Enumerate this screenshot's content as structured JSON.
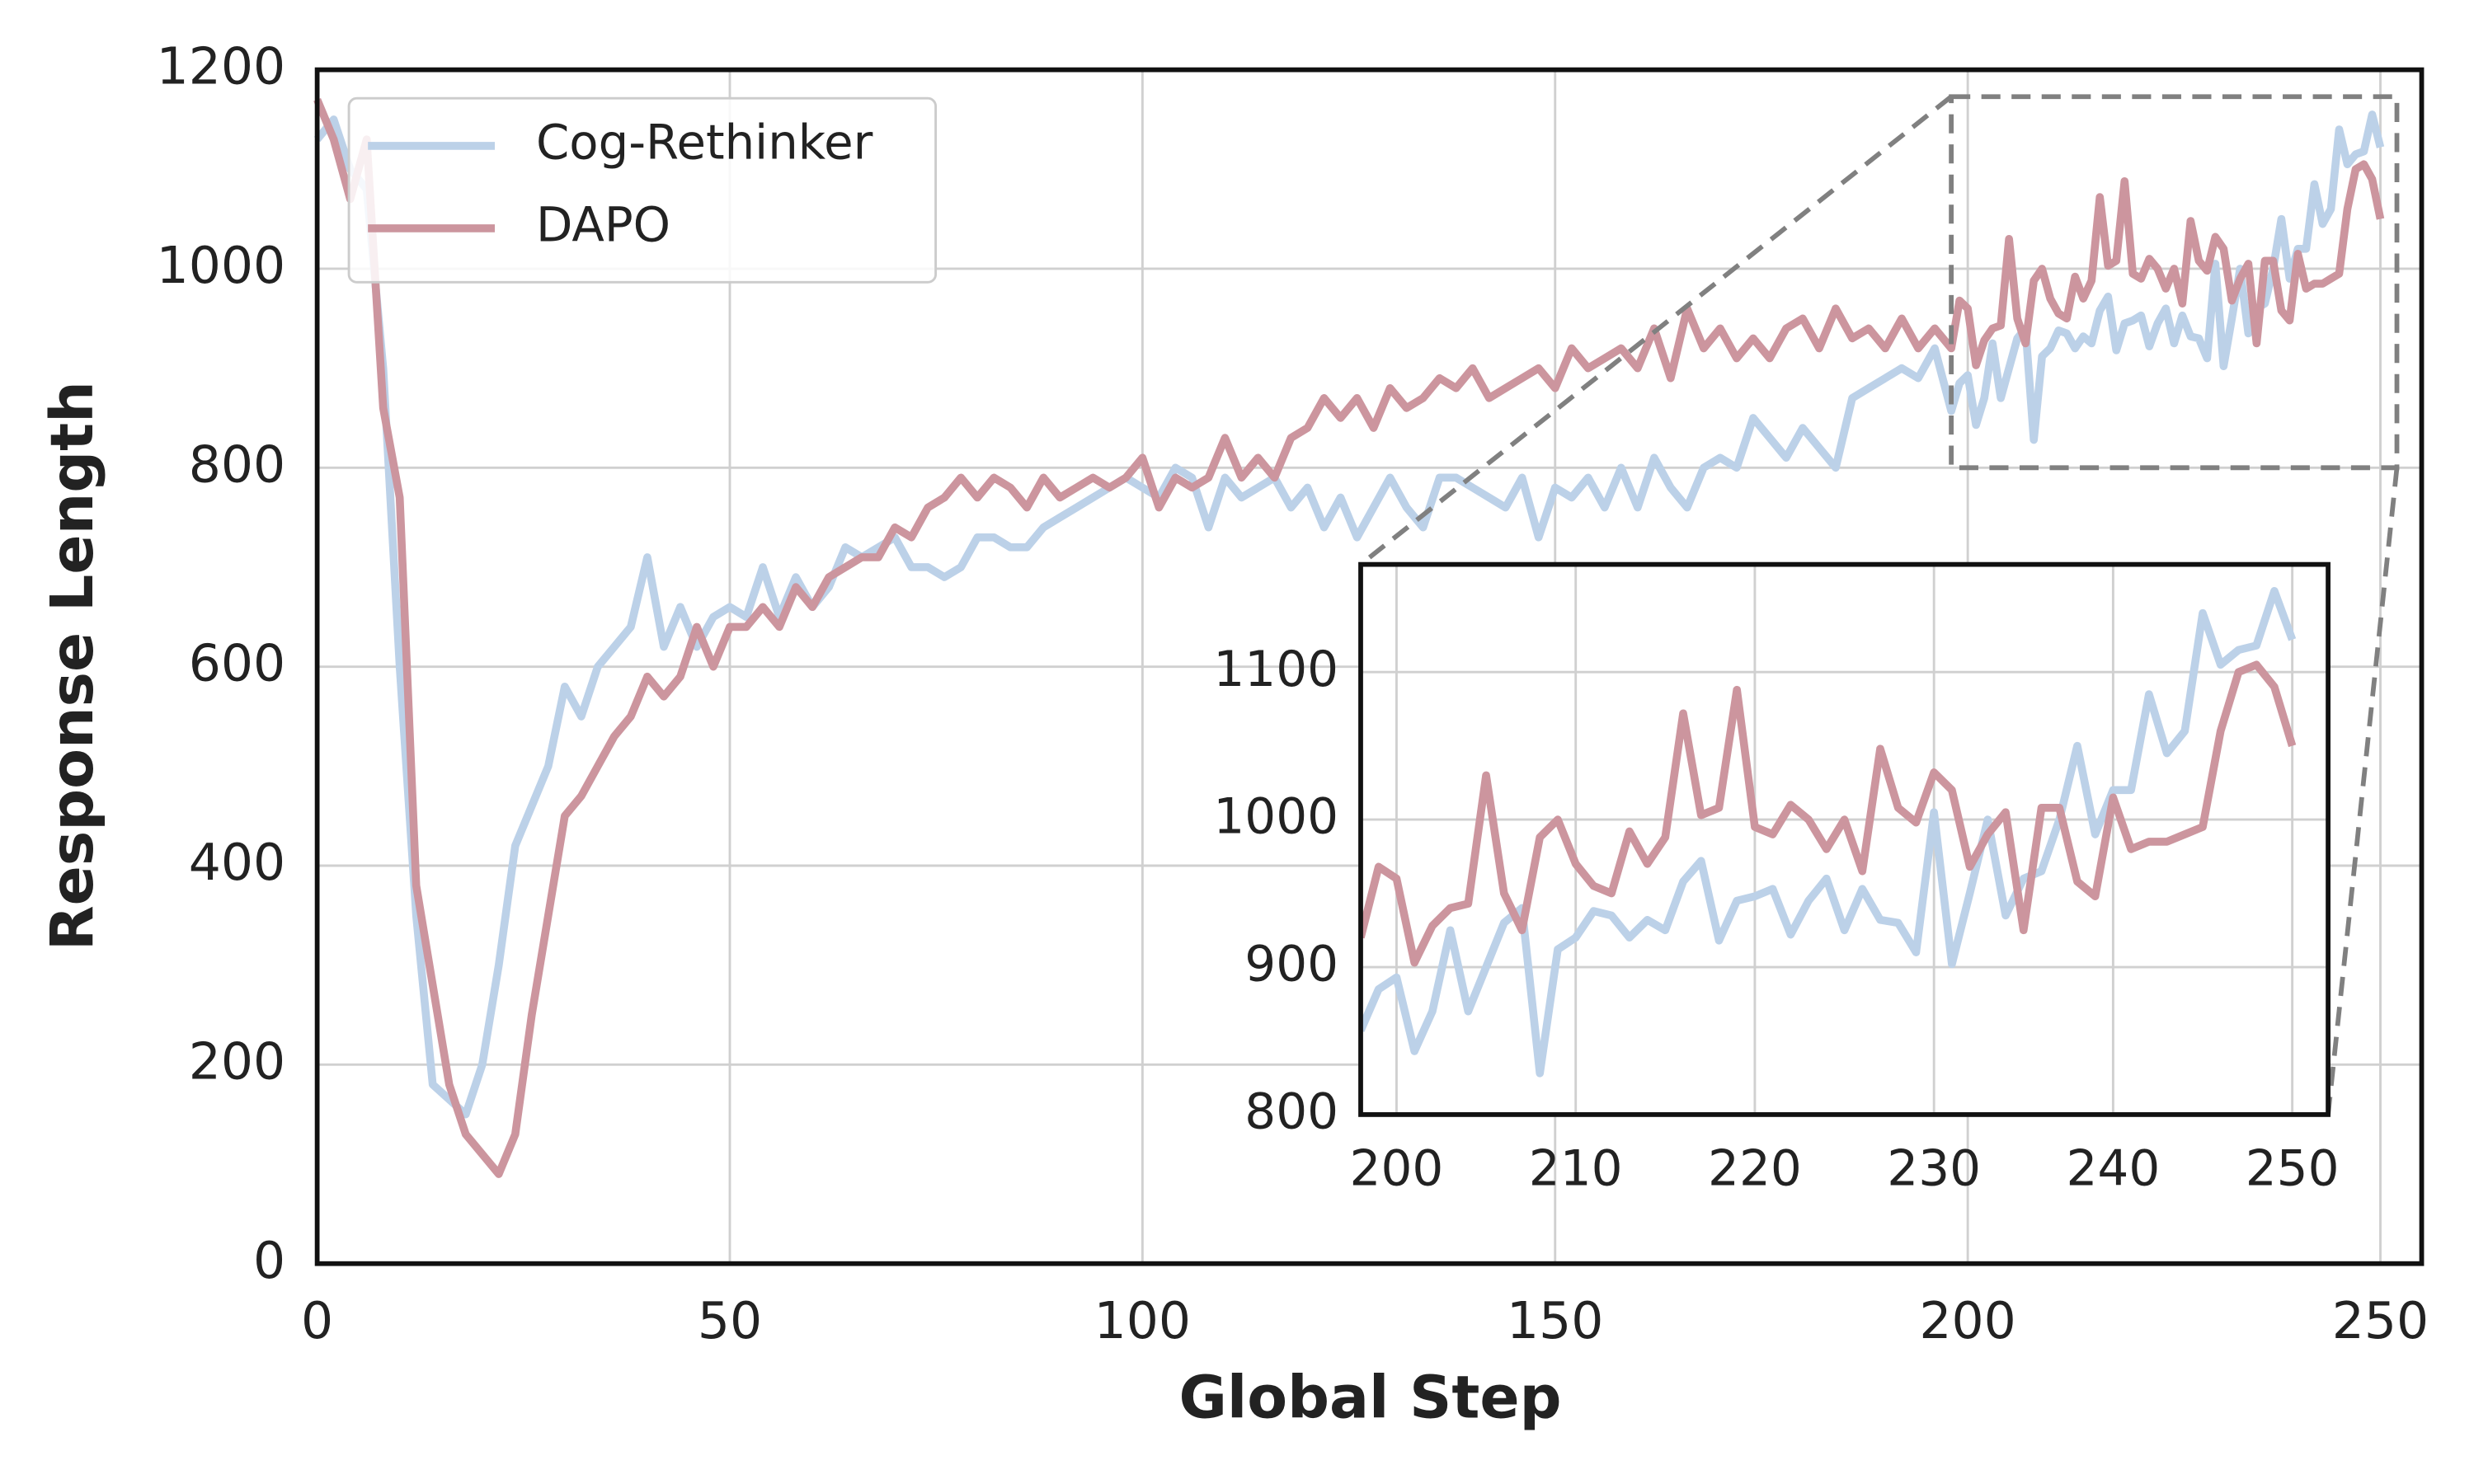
{
  "chart_data": {
    "type": "line",
    "xlabel": "Global Step",
    "ylabel": "Response Length",
    "x": [
      0,
      2,
      4,
      6,
      8,
      10,
      12,
      14,
      16,
      18,
      20,
      22,
      24,
      26,
      28,
      30,
      32,
      34,
      36,
      38,
      40,
      42,
      44,
      46,
      48,
      50,
      52,
      54,
      56,
      58,
      60,
      62,
      64,
      66,
      68,
      70,
      72,
      74,
      76,
      78,
      80,
      82,
      84,
      86,
      88,
      90,
      92,
      94,
      96,
      98,
      100,
      102,
      104,
      106,
      108,
      110,
      112,
      114,
      116,
      118,
      120,
      122,
      124,
      126,
      128,
      130,
      132,
      134,
      136,
      138,
      140,
      142,
      144,
      146,
      148,
      150,
      152,
      154,
      156,
      158,
      160,
      162,
      164,
      166,
      168,
      170,
      172,
      174,
      176,
      178,
      180,
      182,
      184,
      186,
      188,
      190,
      192,
      194,
      196,
      198,
      199,
      200,
      201,
      202,
      203,
      204,
      205,
      206,
      207,
      208,
      209,
      210,
      211,
      212,
      213,
      214,
      215,
      216,
      217,
      218,
      219,
      220,
      221,
      222,
      223,
      224,
      225,
      226,
      227,
      228,
      229,
      230,
      231,
      232,
      233,
      234,
      235,
      236,
      237,
      238,
      239,
      240,
      241,
      242,
      243,
      244,
      245,
      246,
      247,
      248,
      249,
      250
    ],
    "series": [
      {
        "name": "Cog-Rethinker",
        "color": "#bcd1e8",
        "values": [
          1130,
          1150,
          1100,
          1080,
          900,
          600,
          350,
          180,
          165,
          150,
          200,
          300,
          420,
          460,
          500,
          580,
          550,
          600,
          620,
          640,
          710,
          620,
          660,
          620,
          650,
          660,
          650,
          700,
          650,
          690,
          660,
          680,
          720,
          710,
          720,
          730,
          700,
          700,
          690,
          700,
          730,
          730,
          720,
          720,
          740,
          750,
          760,
          770,
          780,
          790,
          780,
          770,
          800,
          790,
          740,
          790,
          770,
          780,
          790,
          760,
          780,
          740,
          770,
          730,
          760,
          790,
          760,
          740,
          790,
          790,
          780,
          770,
          760,
          790,
          730,
          780,
          770,
          790,
          760,
          800,
          760,
          810,
          780,
          760,
          800,
          810,
          800,
          850,
          830,
          810,
          840,
          820,
          800,
          870,
          880,
          890,
          900,
          890,
          920,
          857,
          885,
          893,
          843,
          870,
          925,
          870,
          900,
          930,
          940,
          828,
          912,
          920,
          938,
          935,
          920,
          932,
          925,
          958,
          972,
          918,
          945,
          948,
          953,
          922,
          945,
          960,
          925,
          953,
          932,
          930,
          910,
          1005,
          902,
          950,
          1000,
          935,
          960,
          965,
          1000,
          1050,
          990,
          1020,
          1020,
          1085,
          1045,
          1060,
          1140,
          1105,
          1115,
          1118,
          1155,
          1122
        ]
      },
      {
        "name": "DAPO",
        "color": "#cc959e",
        "values": [
          1170,
          1130,
          1070,
          1130,
          860,
          770,
          380,
          280,
          180,
          130,
          110,
          90,
          130,
          250,
          350,
          450,
          470,
          500,
          530,
          550,
          590,
          570,
          590,
          640,
          600,
          640,
          640,
          660,
          640,
          680,
          660,
          690,
          700,
          710,
          710,
          740,
          730,
          760,
          770,
          790,
          770,
          790,
          780,
          760,
          790,
          770,
          780,
          790,
          780,
          790,
          810,
          760,
          790,
          780,
          790,
          830,
          790,
          810,
          790,
          830,
          840,
          870,
          850,
          870,
          840,
          880,
          860,
          870,
          890,
          880,
          900,
          870,
          880,
          890,
          900,
          880,
          920,
          900,
          910,
          920,
          900,
          940,
          890,
          960,
          920,
          940,
          910,
          930,
          910,
          940,
          950,
          920,
          960,
          930,
          940,
          920,
          950,
          920,
          940,
          920,
          968,
          960,
          903,
          928,
          940,
          943,
          1030,
          950,
          925,
          988,
          1000,
          970,
          955,
          950,
          992,
          970,
          988,
          1072,
          1003,
          1008,
          1088,
          995,
          990,
          1010,
          1000,
          980,
          1000,
          965,
          1048,
          1008,
          998,
          1032,
          1020,
          968,
          990,
          1005,
          925,
          1008,
          1008,
          958,
          948,
          1015,
          980,
          985,
          985,
          990,
          995,
          1060,
          1100,
          1105,
          1090,
          1050
        ]
      }
    ],
    "xlim": [
      0,
      255
    ],
    "ylim": [
      0,
      1200
    ],
    "xticks": [
      0,
      50,
      100,
      150,
      200,
      250
    ],
    "yticks": [
      0,
      200,
      400,
      600,
      800,
      1000,
      1200
    ],
    "grid": true,
    "legend": "upper left",
    "inset": {
      "xlim": [
        198,
        252
      ],
      "ylim": [
        800,
        1173
      ],
      "xticks": [
        200,
        210,
        220,
        230,
        240,
        250
      ],
      "yticks": [
        800,
        900,
        1000,
        1100
      ]
    }
  }
}
